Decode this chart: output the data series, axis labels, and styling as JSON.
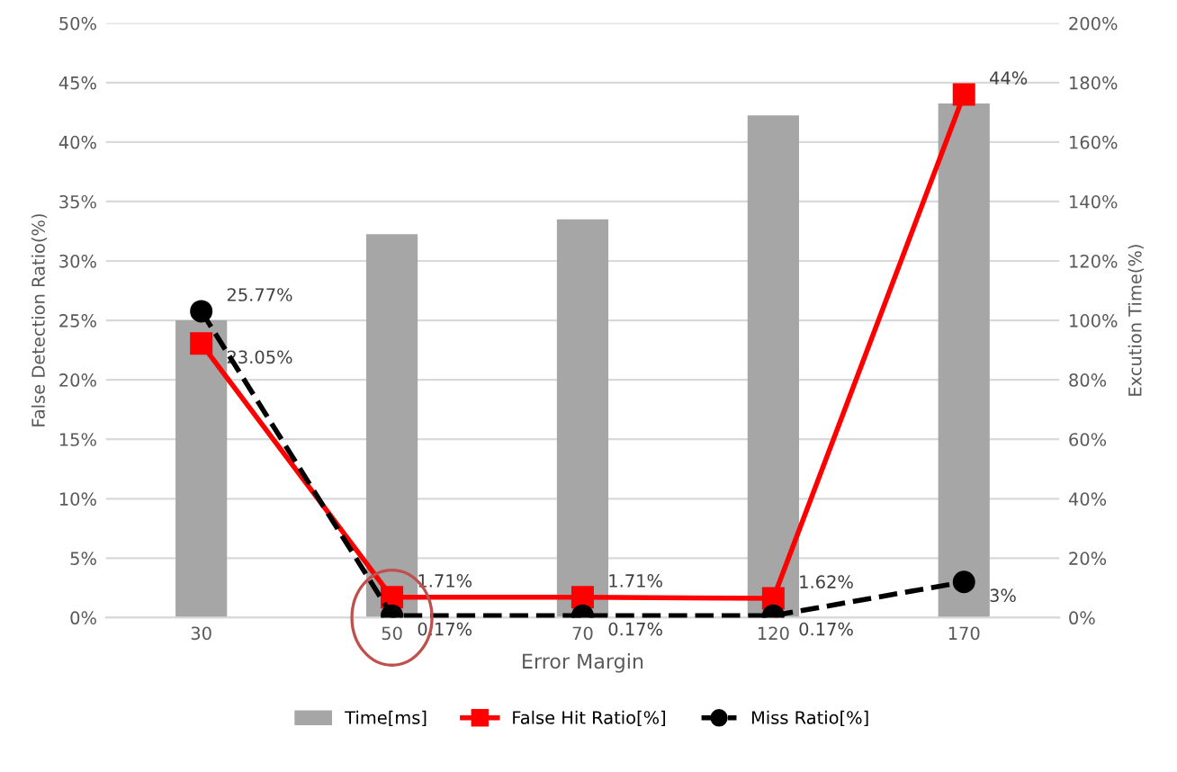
{
  "chart_data": {
    "type": "bar",
    "xlabel": "Error Margin",
    "ylabel": "False Detection Ratio(%)",
    "y2label": "Excution Time(%)",
    "categories": [
      "30",
      "50",
      "70",
      "120",
      "170"
    ],
    "series": [
      {
        "name": "Time[ms]",
        "axis": "y2",
        "color": "#a6a6a6",
        "values": [
          100,
          129,
          134,
          169,
          173
        ]
      },
      {
        "name": "False Hit Ratio[%]",
        "type": "line",
        "color": "#ff0000",
        "marker": "square",
        "line_style": "solid",
        "values": [
          23.05,
          1.71,
          1.71,
          1.62,
          44
        ],
        "value_labels": [
          "23.05%",
          "1.71%",
          "1.71%",
          "1.62%",
          "44%"
        ]
      },
      {
        "name": "Miss Ratio[%]",
        "type": "line",
        "color": "#000000",
        "marker": "circle",
        "line_style": "dashed",
        "values": [
          25.77,
          0.17,
          0.17,
          0.17,
          3
        ],
        "value_labels": [
          "25.77%",
          "0.17%",
          "0.17%",
          "0.17%",
          "3%"
        ]
      }
    ],
    "ylim": [
      0,
      50
    ],
    "yticks": [
      {
        "value": 0,
        "label": "0%"
      },
      {
        "value": 5,
        "label": "5%"
      },
      {
        "value": 10,
        "label": "10%"
      },
      {
        "value": 15,
        "label": "15%"
      },
      {
        "value": 20,
        "label": "20%"
      },
      {
        "value": 25,
        "label": "25%"
      },
      {
        "value": 30,
        "label": "30%"
      },
      {
        "value": 35,
        "label": "35%"
      },
      {
        "value": 40,
        "label": "40%"
      },
      {
        "value": 45,
        "label": "45%"
      },
      {
        "value": 50,
        "label": "50%"
      }
    ],
    "y2lim": [
      0,
      200
    ],
    "y2ticks": [
      {
        "value": 0,
        "label": "0%"
      },
      {
        "value": 20,
        "label": "20%"
      },
      {
        "value": 40,
        "label": "40%"
      },
      {
        "value": 60,
        "label": "60%"
      },
      {
        "value": 80,
        "label": "80%"
      },
      {
        "value": 100,
        "label": "100%"
      },
      {
        "value": 120,
        "label": "120%"
      },
      {
        "value": 140,
        "label": "140%"
      },
      {
        "value": 160,
        "label": "160%"
      },
      {
        "value": 180,
        "label": "180%"
      },
      {
        "value": 200,
        "label": "200%"
      }
    ],
    "grid": "y",
    "legend": "bottom"
  }
}
